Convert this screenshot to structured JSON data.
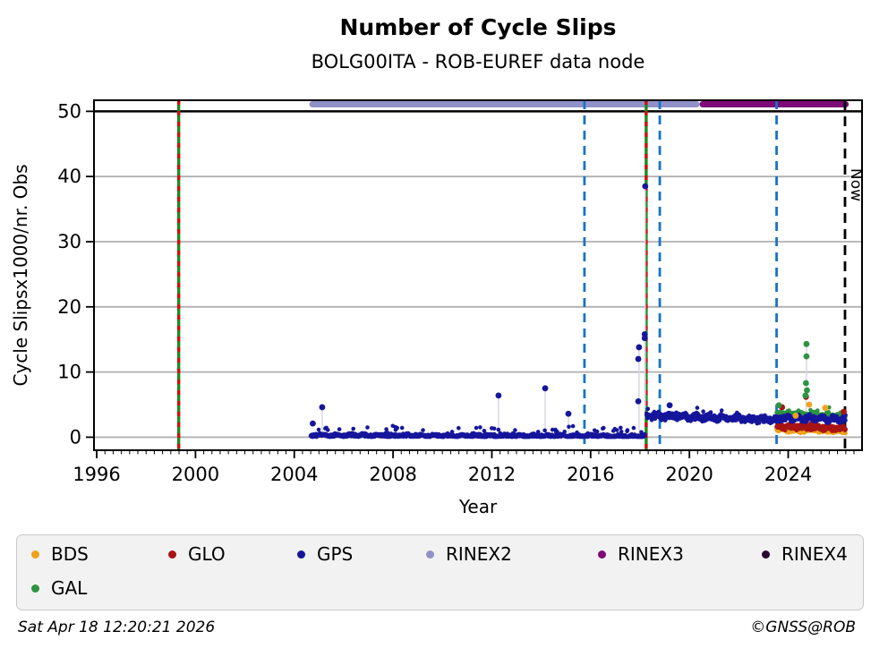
{
  "header": {
    "title": "Number of Cycle Slips",
    "subtitle": "BOLG00ITA - ROB-EUREF data node"
  },
  "footer": {
    "timestamp": "Sat Apr 18 12:20:21 2026",
    "credit": "©GNSS@ROB"
  },
  "legend": {
    "items": [
      {
        "label": "BDS",
        "color": "#f0a21a"
      },
      {
        "label": "GLO",
        "color": "#a81414"
      },
      {
        "label": "GPS",
        "color": "#16169c"
      },
      {
        "label": "RINEX2",
        "color": "#9191c9"
      },
      {
        "label": "RINEX3",
        "color": "#7d0a78"
      },
      {
        "label": "RINEX4",
        "color": "#2a0a30"
      },
      {
        "label": "GAL",
        "color": "#2c9440"
      }
    ]
  },
  "chart_data": {
    "type": "scatter",
    "title": "Number of Cycle Slips",
    "subtitle": "BOLG00ITA - ROB-EUREF data node",
    "xlabel": "Year",
    "ylabel": "Cycle Slipsx1000/nr. Obs",
    "now_label": "Now",
    "xlim": [
      1995.89,
      2026.99
    ],
    "ylim": [
      -2.0,
      51.7
    ],
    "xticks": [
      1996,
      2000,
      2004,
      2008,
      2012,
      2016,
      2020,
      2024
    ],
    "x_minor_step": 0.3333,
    "yticks": [
      0,
      10,
      20,
      30,
      40,
      50
    ],
    "grid": "horizontal-only",
    "grid_color": "#b0b0b0",
    "hline": {
      "y": 50,
      "color": "#000000"
    },
    "colors": {
      "gal_glo_solid": "#1e8a1e",
      "gal_glo_dash": "#d01010",
      "gps_dash": "#1873c8",
      "now": "#000000",
      "stem": "#d7d7e8"
    },
    "availability_bars": [
      {
        "label": "RINEX2",
        "start": 2004.61,
        "end": 2020.41,
        "color": "#9191c9"
      },
      {
        "label": "RINEX3",
        "start": 2020.41,
        "end": 2026.45,
        "color": "#7d0a78"
      }
    ],
    "event_lines": [
      {
        "x": 1999.32,
        "kind": "gal-glo"
      },
      {
        "x": 2018.25,
        "kind": "gal-glo"
      },
      {
        "x": 2015.75,
        "kind": "gps"
      },
      {
        "x": 2018.8,
        "kind": "gps"
      },
      {
        "x": 2023.53,
        "kind": "gps"
      },
      {
        "x": 2026.3,
        "kind": "now",
        "label": "Now"
      }
    ],
    "series": [
      {
        "name": "BDS",
        "color": "#f0a21a",
        "segments": [
          {
            "from": 2023.53,
            "to": 2026.33,
            "n": 270,
            "base_start": 1.15,
            "base_end": 0.95,
            "spread": 0.75,
            "bump_p": 0.03,
            "bump_max": 0.9
          }
        ],
        "outliers": [
          {
            "x": 2024.85,
            "y": 5.0
          },
          {
            "x": 2025.5,
            "y": 4.5
          },
          {
            "x": 2024.3,
            "y": 3.3
          }
        ]
      },
      {
        "name": "GLO",
        "color": "#a81414",
        "segments": [
          {
            "from": 2023.53,
            "to": 2026.33,
            "n": 310,
            "base_start": 1.7,
            "base_end": 1.35,
            "spread": 0.95,
            "bump_p": 0.03,
            "bump_max": 0.9
          }
        ],
        "outliers": [
          {
            "x": 2024.72,
            "y": 6.2,
            "stem": 1.6
          },
          {
            "x": 2023.75,
            "y": 4.6
          },
          {
            "x": 2026.25,
            "y": 3.9
          }
        ]
      },
      {
        "name": "GAL",
        "color": "#2c9440",
        "segments": [
          {
            "from": 2023.53,
            "to": 2026.33,
            "n": 310,
            "base_start": 3.55,
            "base_end": 3.2,
            "spread": 0.95,
            "bump_p": 0.04,
            "bump_max": 1.0
          }
        ],
        "outliers": [
          {
            "x": 2024.74,
            "y": 14.3,
            "stem": 7.5
          },
          {
            "x": 2024.74,
            "y": 12.4
          },
          {
            "x": 2024.72,
            "y": 8.3
          },
          {
            "x": 2024.76,
            "y": 7.2
          },
          {
            "x": 2024.7,
            "y": 6.4
          },
          {
            "x": 2023.62,
            "y": 4.9
          }
        ]
      },
      {
        "name": "GPS",
        "color": "#16169c",
        "segments": [
          {
            "from": 2004.66,
            "to": 2018.2,
            "n": 1350,
            "base_start": 0.3,
            "base_end": 0.15,
            "spread": 0.55,
            "bump_p": 0.05,
            "bump_max": 1.3
          },
          {
            "from": 2018.26,
            "to": 2023.53,
            "n": 560,
            "base_start": 3.3,
            "base_end": 2.7,
            "spread": 1.15,
            "bump_p": 0.03,
            "bump_max": 1.1
          },
          {
            "from": 2023.53,
            "to": 2026.33,
            "n": 330,
            "base_start": 2.95,
            "base_end": 2.8,
            "spread": 1.05,
            "bump_p": 0.02,
            "bump_max": 0.9
          }
        ],
        "outliers": [
          {
            "x": 2004.75,
            "y": 2.1
          },
          {
            "x": 2005.13,
            "y": 4.6,
            "stem": 0.3
          },
          {
            "x": 2012.27,
            "y": 6.4,
            "stem": 0.3
          },
          {
            "x": 2014.16,
            "y": 7.5,
            "stem": 0.3
          },
          {
            "x": 2015.1,
            "y": 3.6,
            "stem": 0.4
          },
          {
            "x": 2017.93,
            "y": 5.5
          },
          {
            "x": 2017.93,
            "y": 12.0
          },
          {
            "x": 2017.96,
            "y": 13.8,
            "stem": 0.4
          },
          {
            "x": 2018.19,
            "y": 15.2
          },
          {
            "x": 2018.19,
            "y": 15.8,
            "stem": 4.0
          },
          {
            "x": 2018.21,
            "y": 38.5,
            "stem": 4.5
          },
          {
            "x": 2019.2,
            "y": 4.9
          }
        ]
      }
    ]
  }
}
